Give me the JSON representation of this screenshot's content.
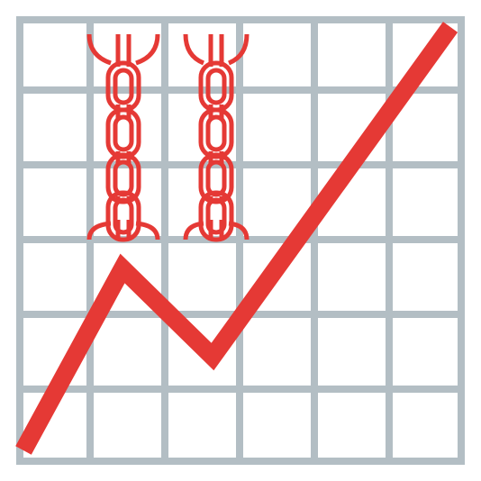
{
  "illustration": {
    "subject": "chain-links-over-rising-line-icon",
    "colors": {
      "grid": "#b3bec4",
      "accent": "#e53935",
      "background": "#ffffff"
    },
    "grid": {
      "columns": 6,
      "rows": 6
    },
    "line_points": [
      [
        0,
        0
      ],
      [
        1.4,
        2.6
      ],
      [
        2.6,
        1.3
      ],
      [
        6,
        5.9
      ]
    ],
    "chains": [
      {
        "name": "left-chain"
      },
      {
        "name": "right-chain"
      }
    ]
  }
}
